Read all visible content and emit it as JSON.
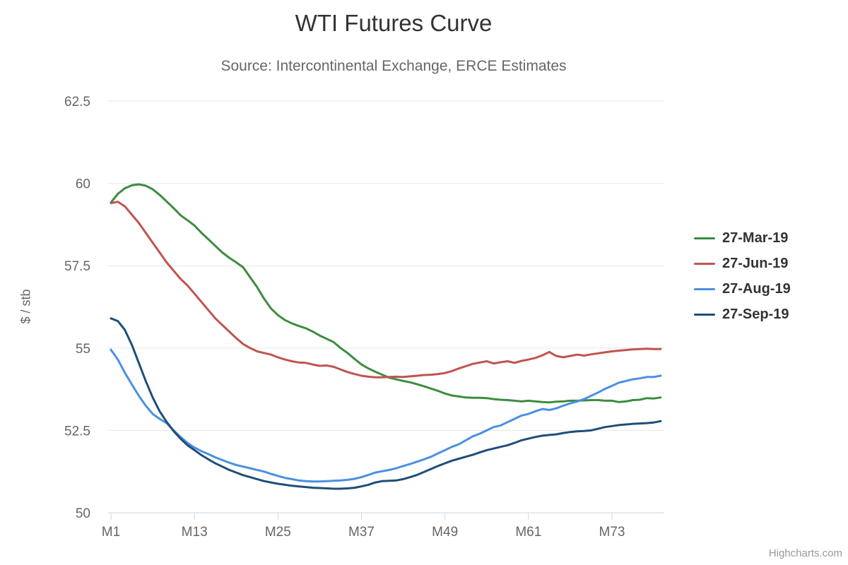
{
  "title": "WTI Futures Curve",
  "subtitle": "Source: Intercontinental Exchange, ERCE Estimates",
  "credits_label": "Highcharts.com",
  "colors": {
    "title_text": "#333333",
    "subtitle_text": "#666666",
    "axis_label": "#666666",
    "gridline": "#e6e6e6",
    "axis_line": "#ccd6eb",
    "legend_text": "#333333",
    "credits_text": "#999999"
  },
  "chart_data": {
    "type": "line",
    "title": "WTI Futures Curve",
    "subtitle": "Source: Intercontinental Exchange, ERCE Estimates",
    "xlabel": "",
    "ylabel": "$ / stb",
    "ylim": [
      50,
      62.5
    ],
    "y_ticks": [
      50,
      52.5,
      55,
      57.5,
      60,
      62.5
    ],
    "x_range": [
      1,
      80
    ],
    "x_tick_positions": [
      1,
      13,
      25,
      37,
      49,
      61,
      73
    ],
    "x_tick_labels": [
      "M1",
      "M13",
      "M25",
      "M37",
      "M49",
      "M61",
      "M73"
    ],
    "grid": "horizontal",
    "legend_position": "right",
    "x_unit": "contract month (M1..M80)",
    "series": [
      {
        "name": "27-Mar-19",
        "color": "#3d8c40",
        "values": [
          59.42,
          59.68,
          59.85,
          59.94,
          59.97,
          59.93,
          59.82,
          59.65,
          59.45,
          59.25,
          59.03,
          58.88,
          58.72,
          58.5,
          58.3,
          58.1,
          57.9,
          57.74,
          57.6,
          57.45,
          57.15,
          56.85,
          56.5,
          56.2,
          56.0,
          55.85,
          55.75,
          55.67,
          55.6,
          55.5,
          55.38,
          55.28,
          55.18,
          55.0,
          54.85,
          54.67,
          54.5,
          54.38,
          54.28,
          54.19,
          54.1,
          54.05,
          54.0,
          53.96,
          53.9,
          53.84,
          53.77,
          53.7,
          53.62,
          53.56,
          53.53,
          53.5,
          53.49,
          53.49,
          53.48,
          53.45,
          53.43,
          53.42,
          53.4,
          53.38,
          53.4,
          53.38,
          53.36,
          53.35,
          53.37,
          53.38,
          53.4,
          53.4,
          53.41,
          53.42,
          53.42,
          53.4,
          53.4,
          53.36,
          53.38,
          53.42,
          53.43,
          53.48,
          53.47,
          53.5
        ]
      },
      {
        "name": "27-Jun-19",
        "color": "#c0544f",
        "values": [
          59.4,
          59.44,
          59.3,
          59.05,
          58.8,
          58.5,
          58.2,
          57.9,
          57.6,
          57.35,
          57.1,
          56.9,
          56.65,
          56.4,
          56.15,
          55.9,
          55.7,
          55.5,
          55.3,
          55.12,
          55.0,
          54.9,
          54.85,
          54.8,
          54.72,
          54.65,
          54.6,
          54.56,
          54.55,
          54.5,
          54.46,
          54.47,
          54.43,
          54.35,
          54.27,
          54.21,
          54.16,
          54.13,
          54.11,
          54.11,
          54.12,
          54.13,
          54.12,
          54.14,
          54.16,
          54.18,
          54.19,
          54.21,
          54.24,
          54.3,
          54.38,
          54.45,
          54.52,
          54.56,
          54.6,
          54.53,
          54.57,
          54.6,
          54.55,
          54.61,
          54.65,
          54.7,
          54.78,
          54.88,
          54.76,
          54.72,
          54.76,
          54.8,
          54.77,
          54.81,
          54.84,
          54.87,
          54.9,
          54.92,
          54.94,
          54.96,
          54.97,
          54.98,
          54.97,
          54.97
        ]
      },
      {
        "name": "27-Aug-19",
        "color": "#4a90e2",
        "values": [
          54.95,
          54.65,
          54.25,
          53.9,
          53.55,
          53.25,
          53.0,
          52.85,
          52.72,
          52.5,
          52.3,
          52.12,
          51.98,
          51.87,
          51.78,
          51.68,
          51.6,
          51.52,
          51.45,
          51.4,
          51.35,
          51.3,
          51.25,
          51.18,
          51.12,
          51.06,
          51.02,
          50.98,
          50.96,
          50.95,
          50.95,
          50.96,
          50.97,
          50.98,
          51.0,
          51.03,
          51.08,
          51.15,
          51.22,
          51.26,
          51.3,
          51.35,
          51.42,
          51.48,
          51.55,
          51.62,
          51.7,
          51.8,
          51.9,
          52.0,
          52.08,
          52.2,
          52.32,
          52.4,
          52.5,
          52.6,
          52.65,
          52.75,
          52.85,
          52.95,
          53.0,
          53.08,
          53.15,
          53.12,
          53.17,
          53.25,
          53.32,
          53.38,
          53.45,
          53.55,
          53.65,
          53.76,
          53.85,
          53.95,
          54.0,
          54.05,
          54.08,
          54.12,
          54.12,
          54.16
        ]
      },
      {
        "name": "27-Sep-19",
        "color": "#1f4e79",
        "values": [
          55.9,
          55.82,
          55.55,
          55.1,
          54.55,
          54.0,
          53.5,
          53.08,
          52.76,
          52.48,
          52.25,
          52.05,
          51.9,
          51.75,
          51.62,
          51.5,
          51.4,
          51.3,
          51.22,
          51.14,
          51.08,
          51.02,
          50.96,
          50.92,
          50.88,
          50.85,
          50.82,
          50.8,
          50.78,
          50.76,
          50.75,
          50.74,
          50.73,
          50.73,
          50.74,
          50.76,
          50.8,
          50.85,
          50.92,
          50.96,
          50.97,
          50.98,
          51.02,
          51.08,
          51.15,
          51.24,
          51.33,
          51.42,
          51.5,
          51.58,
          51.64,
          51.7,
          51.76,
          51.83,
          51.9,
          51.95,
          52.0,
          52.05,
          52.12,
          52.2,
          52.25,
          52.3,
          52.34,
          52.36,
          52.38,
          52.42,
          52.45,
          52.47,
          52.48,
          52.5,
          52.55,
          52.6,
          52.63,
          52.66,
          52.68,
          52.7,
          52.71,
          52.72,
          52.74,
          52.78
        ]
      }
    ]
  }
}
